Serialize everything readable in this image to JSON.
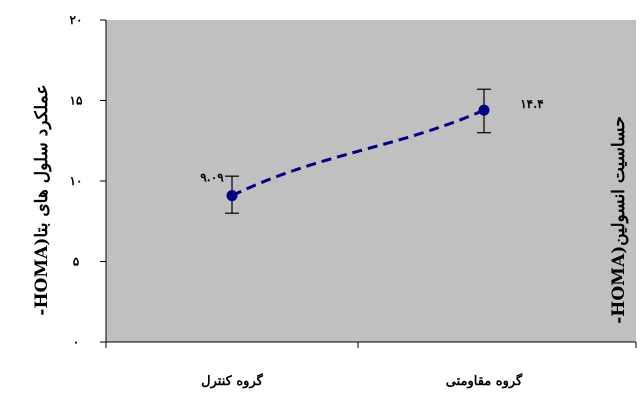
{
  "chart_data": {
    "type": "line",
    "categories": [
      "گروه کنترل",
      "گروه مقاومتی"
    ],
    "series": [
      {
        "values": [
          9.09,
          14.4
        ],
        "error_low": [
          8.0,
          13.0
        ],
        "error_high": [
          10.3,
          15.7
        ],
        "data_labels": [
          "۹.۰۹",
          "۱۴.۴"
        ],
        "color": "#000080",
        "line_style": "dashed",
        "marker": "circle"
      }
    ],
    "ylim": [
      0,
      20
    ],
    "y_ticks": [
      0,
      5,
      10,
      15,
      20
    ],
    "y_tick_labels": [
      "۰",
      "۵",
      "۱۰",
      "۱۵",
      "۲۰"
    ],
    "ylabel_left": "عملکرد سلول های بتا(HOMA-",
    "ylabel_right": "حساسیت انسولین(HOMA-",
    "plot_background": "#c0c0c0",
    "grid": false,
    "legend": "none"
  }
}
